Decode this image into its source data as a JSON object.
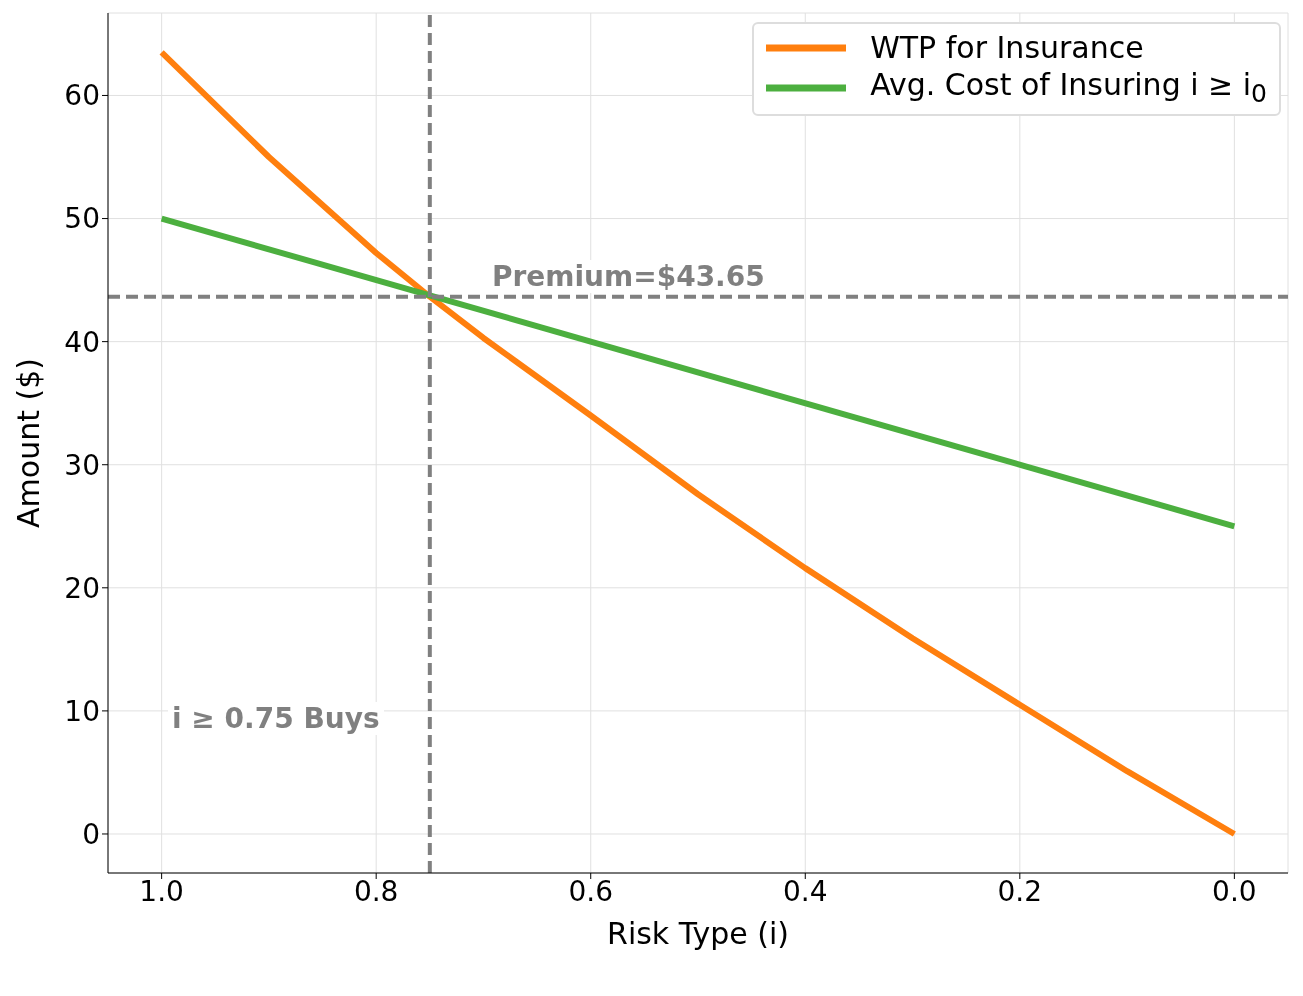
{
  "chart_data": {
    "type": "line",
    "xlabel": "Risk Type (i)",
    "ylabel": "Amount ($)",
    "xlim": [
      1.05,
      -0.05
    ],
    "ylim": [
      -3.17,
      66.7
    ],
    "xticks": [
      {
        "value": 1,
        "label": "1.0"
      },
      {
        "value": 0.8,
        "label": "0.8"
      },
      {
        "value": 0.6,
        "label": "0.6"
      },
      {
        "value": 0.4,
        "label": "0.4"
      },
      {
        "value": 0.2,
        "label": "0.2"
      },
      {
        "value": 0,
        "label": "0.0"
      }
    ],
    "yticks": [
      0,
      10,
      20,
      30,
      40,
      50,
      60
    ],
    "series": [
      {
        "name": "WTP for Insurance",
        "color": "#ff7f0e",
        "x": [
          1,
          0.9,
          0.8,
          0.75,
          0.7,
          0.6,
          0.5,
          0.4,
          0.3,
          0.2,
          0.1,
          0
        ],
        "values": [
          63.5,
          55.0,
          47.2,
          43.65,
          40.3,
          34.0,
          27.6,
          21.6,
          15.9,
          10.5,
          5.1,
          0
        ]
      },
      {
        "name": "Avg. Cost of Insuring i ≥ i$_{0}$",
        "color": "#4caf3f",
        "x": [
          1,
          0
        ],
        "values": [
          50,
          25
        ]
      }
    ],
    "ref_lines": [
      {
        "axis": "x",
        "value": 0.75,
        "color": "#808080",
        "line_style": "dashed"
      },
      {
        "axis": "y",
        "value": 43.65,
        "color": "#808080",
        "line_style": "dashed"
      }
    ],
    "annotations": [
      "Premium=$43.65",
      "i ≥ 0.75 Buys"
    ],
    "grid": true,
    "legend": "top right",
    "line_style": "solid",
    "marker": "none"
  }
}
